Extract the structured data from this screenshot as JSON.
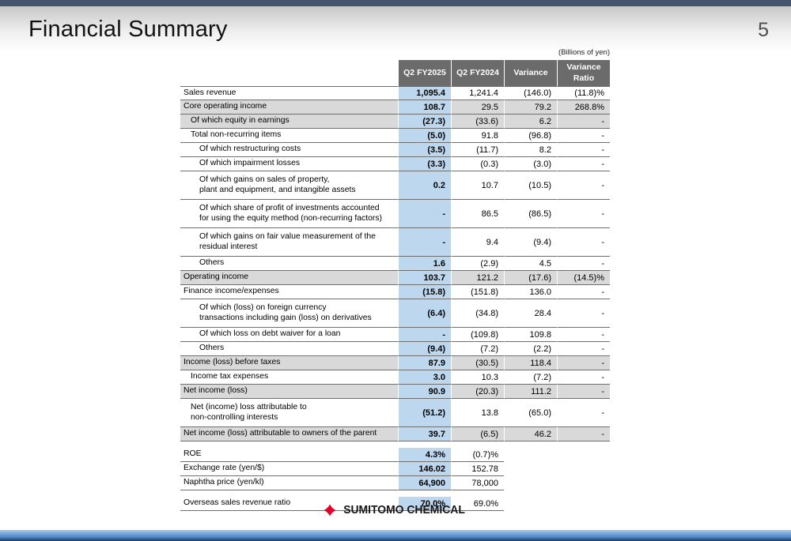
{
  "page": {
    "title": "Financial Summary",
    "page_number": "5",
    "units_note": "(Billions of yen)",
    "footer_brand": "SUMITOMO CHEMICAL"
  },
  "colors": {
    "top_bar": "#44546A",
    "table_header_gray": "#6b6b6b",
    "fy2025_column_blue": "#BDD7EE",
    "subtotal_row_gray": "#d9d9d9",
    "bottom_bar_blue": "#4a86c6",
    "logo_red": "#e60027"
  },
  "table": {
    "column_headers": [
      "Q2 FY2025",
      "Q2 FY2024",
      "Variance",
      "Variance Ratio"
    ],
    "rows": [
      {
        "label_lines": [
          "Sales revenue"
        ],
        "indent": 0,
        "bg": "white",
        "values": [
          "1,095.4",
          "1,241.4",
          "(146.0)",
          "(11.8)%"
        ]
      },
      {
        "label_lines": [
          "Core operating income"
        ],
        "indent": 0,
        "bg": "gray",
        "values": [
          "108.7",
          "29.5",
          "79.2",
          "268.8%"
        ]
      },
      {
        "label_lines": [
          "Of which equity in earnings"
        ],
        "indent": 1,
        "bg": "gray",
        "values": [
          "(27.3)",
          "(33.6)",
          "6.2",
          "-"
        ]
      },
      {
        "label_lines": [
          "Total non-recurring items"
        ],
        "indent": 1,
        "bg": "white",
        "values": [
          "(5.0)",
          "91.8",
          "(96.8)",
          "-"
        ]
      },
      {
        "label_lines": [
          "Of which restructuring costs"
        ],
        "indent": 2,
        "bg": "white",
        "values": [
          "(3.5)",
          "(11.7)",
          "8.2",
          "-"
        ]
      },
      {
        "label_lines": [
          "Of which impairment losses"
        ],
        "indent": 2,
        "bg": "white",
        "values": [
          "(3.3)",
          "(0.3)",
          "(3.0)",
          "-"
        ]
      },
      {
        "label_lines": [
          "Of which gains on sales of property,",
          "plant and equipment, and intangible assets"
        ],
        "indent": 2,
        "bg": "white",
        "values": [
          "0.2",
          "10.7",
          "(10.5)",
          "-"
        ]
      },
      {
        "label_lines": [
          "Of which share of profit of investments accounted",
          "for using the equity method (non-recurring factors)"
        ],
        "indent": 2,
        "bg": "white",
        "values": [
          "-",
          "86.5",
          "(86.5)",
          "-"
        ]
      },
      {
        "label_lines": [
          "Of which gains on fair value measurement of the",
          "residual interest"
        ],
        "indent": 2,
        "bg": "white",
        "values": [
          "-",
          "9.4",
          "(9.4)",
          "-"
        ]
      },
      {
        "label_lines": [
          "Others"
        ],
        "indent": 2,
        "bg": "white",
        "values": [
          "1.6",
          "(2.9)",
          "4.5",
          "-"
        ]
      },
      {
        "label_lines": [
          "Operating income"
        ],
        "indent": 0,
        "bg": "gray",
        "values": [
          "103.7",
          "121.2",
          "(17.6)",
          "(14.5)%"
        ]
      },
      {
        "label_lines": [
          "Finance income/expenses"
        ],
        "indent": 0,
        "bg": "white",
        "values": [
          "(15.8)",
          "(151.8)",
          "136.0",
          "-"
        ]
      },
      {
        "label_lines": [
          "Of which (loss) on foreign currency",
          "transactions including gain (loss) on derivatives"
        ],
        "indent": 2,
        "bg": "white",
        "values": [
          "(6.4)",
          "(34.8)",
          "28.4",
          "-"
        ]
      },
      {
        "label_lines": [
          "Of which loss on debt waiver for a loan"
        ],
        "indent": 2,
        "bg": "white",
        "values": [
          "-",
          "(109.8)",
          "109.8",
          "-"
        ]
      },
      {
        "label_lines": [
          "Others"
        ],
        "indent": 2,
        "bg": "white",
        "values": [
          "(9.4)",
          "(7.2)",
          "(2.2)",
          "-"
        ]
      },
      {
        "label_lines": [
          "Income (loss) before taxes"
        ],
        "indent": 0,
        "bg": "gray",
        "values": [
          "87.9",
          "(30.5)",
          "118.4",
          "-"
        ]
      },
      {
        "label_lines": [
          "Income tax expenses"
        ],
        "indent": 1,
        "bg": "white",
        "values": [
          "3.0",
          "10.3",
          "(7.2)",
          "-"
        ]
      },
      {
        "label_lines": [
          "Net income (loss)"
        ],
        "indent": 0,
        "bg": "gray",
        "values": [
          "90.9",
          "(20.3)",
          "111.2",
          "-"
        ]
      },
      {
        "label_lines": [
          "Net (income) loss attributable to",
          "non-controlling interests"
        ],
        "indent": 1,
        "bg": "white",
        "values": [
          "(51.2)",
          "13.8",
          "(65.0)",
          "-"
        ]
      },
      {
        "label_lines": [
          "Net income (loss) attributable to owners of the parent"
        ],
        "indent": 0,
        "bg": "gray",
        "values": [
          "39.7",
          "(6.5)",
          "46.2",
          "-"
        ]
      },
      {
        "type": "spacer"
      },
      {
        "label_lines": [
          "ROE"
        ],
        "indent": 0,
        "bg": "white",
        "tail_hidden": true,
        "values": [
          "4.3%",
          "(0.7)%",
          "",
          ""
        ]
      },
      {
        "label_lines": [
          "Exchange rate (yen/$)"
        ],
        "indent": 0,
        "bg": "white",
        "tail_hidden": true,
        "values": [
          "146.02",
          "152.78",
          "",
          ""
        ]
      },
      {
        "label_lines": [
          "Naphtha price (yen/kl)"
        ],
        "indent": 0,
        "bg": "white",
        "tail_hidden": true,
        "values": [
          "64,900",
          "78,000",
          "",
          ""
        ]
      },
      {
        "type": "spacer"
      },
      {
        "label_lines": [
          "Overseas sales revenue ratio"
        ],
        "indent": 0,
        "bg": "white",
        "tail_hidden": true,
        "values": [
          "70.0%",
          "69.0%",
          "",
          ""
        ]
      }
    ]
  }
}
